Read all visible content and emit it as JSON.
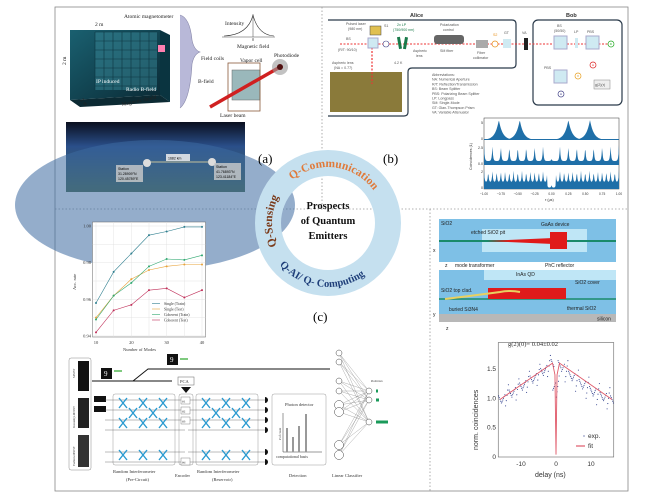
{
  "center": {
    "title_lines": [
      "Prospects",
      "of Quantum",
      "Emitters"
    ],
    "ring_labels": {
      "sensing": "Q-Sensing",
      "communication": "Q-Communication",
      "computing": "Q-AI/ Q- Computing"
    },
    "colors": {
      "ring": "#c5e0ef",
      "sensing": "#7a3a1a",
      "communication": "#e07a3a",
      "computing": "#1f3f7a"
    }
  },
  "panel_labels": {
    "a": "(a)",
    "b": "(b)",
    "c": "(c)"
  },
  "panel_a": {
    "magnetometer": {
      "atomic_magnetometer": "Atomic magnetometer",
      "width": "2 m",
      "height": "2 m",
      "depth": "2 m",
      "induced": "IP induced",
      "radio": "Radio B-field",
      "shield": "Magnetic shield"
    },
    "sensor": {
      "intensity": "Intensity",
      "magnetic_field": "Magnetic field",
      "zero": "0",
      "field_coils": "Field coils",
      "vapor_cell": "Vapor cell",
      "photodiode": "Photodiode",
      "b_field": "B-field",
      "laser_beam": "Laser beam"
    },
    "earth": {
      "distance": "1682 km",
      "station_left": [
        "Station",
        "31.28909°N",
        "120.45789°E"
      ],
      "station_right": [
        "Station",
        "41.76893°N",
        "123.41184°E"
      ]
    }
  },
  "panel_b": {
    "alice": "Alice",
    "bob": "Bob",
    "alice_parts": {
      "pulsed_laser": [
        "Pulsed laser",
        "(980 nm)"
      ],
      "bs": [
        "BS",
        "(R/T: 90/10)"
      ],
      "s1": "S1",
      "lp": [
        "2x LP",
        "(750/900 nm)"
      ],
      "pol_control": [
        "Polarization",
        "control"
      ],
      "sm_fiber": "SM fiber",
      "aspheric_lens": [
        "Aspheric",
        "lens"
      ],
      "fiber_collimator": [
        "Fiber",
        "collimator"
      ],
      "s2": "S2",
      "gt": "GT",
      "va": "VA",
      "aspheric_lens_na": [
        "Aspheric lens",
        "(NA = 0.77)"
      ],
      "temp": "4.2 K"
    },
    "bob_parts": {
      "bs": [
        "BS",
        "(50/50)"
      ],
      "lp": "LP",
      "pbs": "PBS",
      "pbs2": "PBS",
      "det_d": "D",
      "det_a": "A",
      "det_v": "V",
      "det_h": "H",
      "g2": "g(2)(τ)"
    },
    "abbreviations": [
      "Abbreviations:",
      "NA: Numerical Aperture",
      "R/T: Reflection/Transmission",
      "BS: Beam Splitter",
      "PBS: Polarizing Beam Splitter",
      "LP: Longpass",
      "SM: Single-Mode",
      "GT: Glan-Thompson Prism",
      "VA: Variable Attenuator"
    ],
    "coincidence_chart": {
      "ylabel": "Coincidences (1)",
      "xlabel": "τ (μs)",
      "xticks": [
        "−1.00",
        "−0.75",
        "−0.50",
        "−0.25",
        "0.00",
        "0.25",
        "0.50",
        "0.75",
        "1.00"
      ],
      "row_yticks": [
        [
          "5",
          "0"
        ],
        [
          "2.5",
          "0.0"
        ],
        [
          "2",
          "0"
        ]
      ],
      "color": "#1f6fa8"
    }
  },
  "panel_c": {
    "encoder_labels": {
      "pca": "PCA",
      "encoder": "Encoder",
      "pre_circuit": [
        "Random Interferometer",
        "(Pre-Circuit)"
      ],
      "reservoir": [
        "Random Interferometer",
        "(Reservoir)"
      ],
      "detection": "Detection",
      "photon_detector": "Photon detector",
      "counts_axis": "# of count",
      "basis_axis": "computational basis",
      "classifier": "Linear Classifier",
      "prediction": "Prediction",
      "datasets": [
        "MNIST",
        "Kuzushiji-MNIST",
        "Fashion-MNIST"
      ],
      "digit": "9",
      "thetas": [
        "θ1",
        "θ2",
        "θ3",
        "θd"
      ]
    }
  },
  "panel_d": {
    "labels": {
      "sio2": "SiO2",
      "gaas": "GaAs device",
      "etched_pit": "etched SiO2 pit",
      "x_axis": "x",
      "z_axis": "z",
      "y_axis": "y",
      "mode_transformer": "mode transformer",
      "phc": "PhC reflector",
      "inas": "InAs QD",
      "sio2_cover": "SiO2 cover",
      "top_clad": "SiO2 top clad.",
      "buried": "buried Si3N4",
      "thermal": "thermal SiO2",
      "silicon": "silicon"
    }
  },
  "chart_data": [
    {
      "type": "line",
      "xlabel": "Number of Modes",
      "ylabel": "Acc. rate",
      "x": [
        10,
        15,
        20,
        25,
        30,
        35,
        40
      ],
      "xticks": [
        "10",
        "20",
        "30",
        "40"
      ],
      "yticks": [
        "0.94",
        "0.96",
        "0.98",
        "1.00"
      ],
      "xlim": [
        9,
        41
      ],
      "ylim": [
        0.94,
        1.0
      ],
      "grid": true,
      "legend": "bottom-right",
      "series": [
        {
          "name": "Single (Train)",
          "color": "#2f7f8f",
          "values": [
            0.958,
            0.975,
            0.985,
            0.995,
            0.997,
            0.9995,
            0.9995
          ]
        },
        {
          "name": "Single (Test)",
          "color": "#e8a33a",
          "values": [
            0.95,
            0.962,
            0.971,
            0.976,
            0.978,
            0.979,
            0.979
          ]
        },
        {
          "name": "Coherent (Train)",
          "color": "#2fa870",
          "values": [
            0.949,
            0.962,
            0.969,
            0.978,
            0.982,
            0.9815,
            0.984
          ]
        },
        {
          "name": "Coherent (Test)",
          "color": "#c0305a",
          "values": [
            0.942,
            0.954,
            0.957,
            0.965,
            0.966,
            0.961,
            0.965
          ]
        }
      ]
    },
    {
      "type": "scatter",
      "title": "g(2)(0)= 0.04±0.02",
      "xlabel": "delay (ns)",
      "ylabel": "norm. coincidences",
      "xticks": [
        "-10",
        "0",
        "10"
      ],
      "yticks": [
        "0",
        "0.5",
        "1.0",
        "1.5"
      ],
      "xlim": [
        -16.5,
        16.5
      ],
      "ylim": [
        0,
        1.95
      ],
      "legend": "bottom-right",
      "series": [
        {
          "name": "exp.",
          "color": "#2a3a8a",
          "x": [
            -16,
            -15,
            -14,
            -13,
            -12,
            -11,
            -10,
            -9,
            -8,
            -7,
            -6,
            -5,
            -4,
            -3,
            -2,
            -1,
            -0.5,
            0.5,
            1,
            2,
            3,
            4,
            5,
            6,
            7,
            8,
            9,
            10,
            11,
            12,
            13,
            14,
            15,
            16
          ],
          "y": [
            0.98,
            1.0,
            1.05,
            1.08,
            1.12,
            1.15,
            1.2,
            1.24,
            1.28,
            1.32,
            1.36,
            1.4,
            1.45,
            1.5,
            1.55,
            1.6,
            1.2,
            1.2,
            1.58,
            1.52,
            1.46,
            1.4,
            1.36,
            1.3,
            1.26,
            1.22,
            1.18,
            1.14,
            1.1,
            1.07,
            1.04,
            1.02,
            1.0,
            0.98
          ]
        },
        {
          "name": "fit",
          "color": "#e05a6a",
          "x": [
            -16,
            -1,
            -0.3,
            0,
            0.3,
            1,
            16
          ],
          "y": [
            0.98,
            1.6,
            1.4,
            0.04,
            1.4,
            1.6,
            0.98
          ]
        }
      ]
    }
  ]
}
